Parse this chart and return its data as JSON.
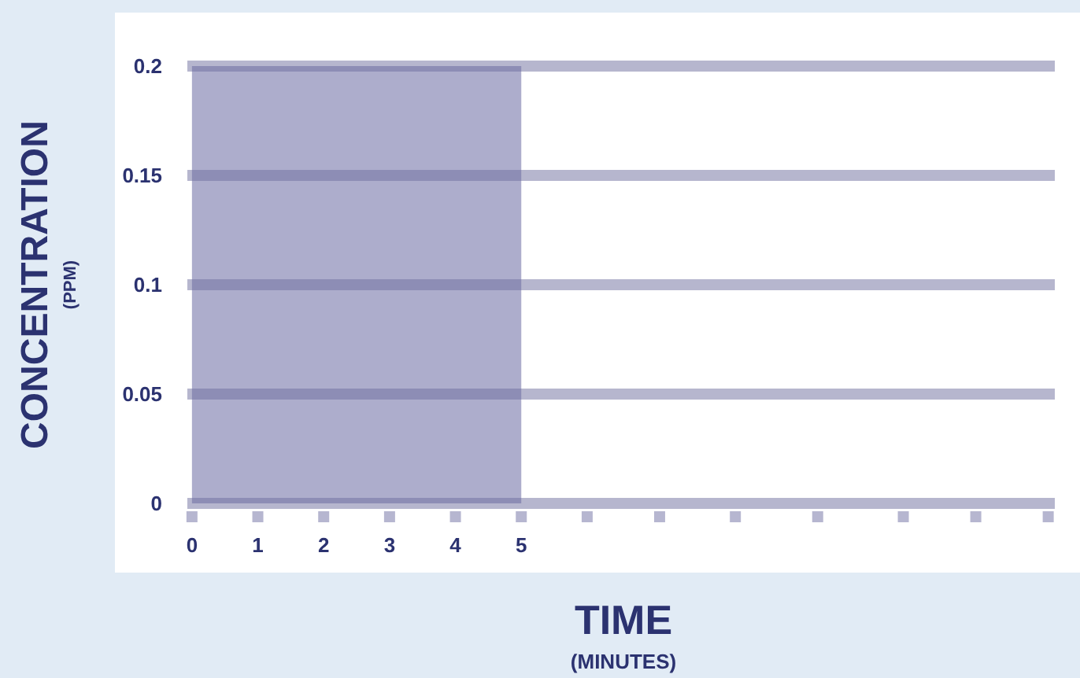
{
  "chart_data": {
    "type": "area",
    "xlabel": "TIME\n(MINUTES)",
    "ylabel": "CONCENTRATION\n(PPM)",
    "x": [
      0,
      5
    ],
    "values": [
      0.2,
      0.2
    ],
    "color": "#adadcc",
    "xlim": [
      -0.07,
      13.1
    ],
    "xticks": [
      0,
      1,
      2,
      3,
      4,
      5,
      {
        "value": 6,
        "label": null
      },
      {
        "value": 7.1,
        "label": null
      },
      {
        "value": 8.25,
        "label": null
      },
      {
        "value": 9.5,
        "label": null
      },
      {
        "value": 10.8,
        "label": null
      },
      {
        "value": 11.9,
        "label": null
      },
      {
        "value": 13,
        "label": null
      }
    ],
    "ylim": [
      0,
      0.2
    ],
    "yticks": [
      0,
      0.05,
      0.1,
      0.15,
      0.2
    ],
    "grid": "y"
  }
}
